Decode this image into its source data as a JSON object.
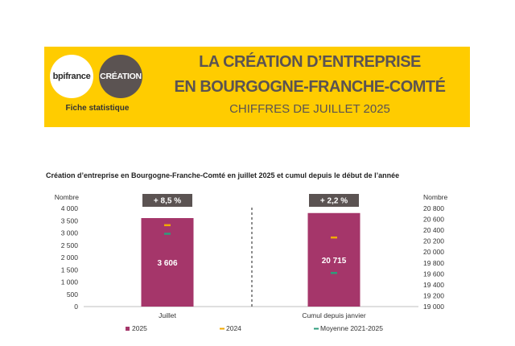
{
  "header": {
    "logo_bpifrance": "bpifrance",
    "logo_creation": "CRÉATION",
    "fiche": "Fiche statistique",
    "title_line1": "LA CRÉATION D’ENTREPRISE",
    "title_line2": "EN BOURGOGNE-FRANCHE-COMTÉ",
    "subtitle": "CHIFFRES DE JUILLET 2025"
  },
  "colors": {
    "banner": "#FFCC00",
    "bar_2025": "#A5366A",
    "marker_2024": "#F2A900",
    "marker_avg": "#2E9C7C",
    "badge": "#5B5352"
  },
  "chart_data": {
    "type": "bar",
    "title": "Création d’entreprise en Bourgogne-Franche-Comté en juillet 2025 et cumul depuis le début de l’année",
    "left_axis": {
      "label": "Nombre",
      "ylim": [
        0,
        4000
      ],
      "ticks": [
        "4 000",
        "3 500",
        "3 000",
        "2 500",
        "2 000",
        "1 500",
        "1 000",
        "500",
        "0"
      ]
    },
    "right_axis": {
      "label": "Nombre",
      "ylim": [
        19000,
        20800
      ],
      "ticks": [
        "20 800",
        "20 600",
        "20 400",
        "20 200",
        "20 000",
        "19 800",
        "19 600",
        "19 400",
        "19 200",
        "19 000"
      ]
    },
    "categories": [
      "Juillet",
      "Cumul depuis janvier"
    ],
    "badges": [
      "+ 8,5 %",
      "+ 2,2 %"
    ],
    "bar_labels": [
      "3 606",
      "20 715"
    ],
    "series": [
      {
        "name": "2025",
        "kind": "bar",
        "values": [
          3606,
          20715
        ]
      },
      {
        "name": "2024",
        "kind": "marker",
        "values": [
          3325,
          20270
        ]
      },
      {
        "name": "Moyenne 2021-2025",
        "kind": "marker",
        "values": [
          2975,
          19620
        ]
      }
    ],
    "legend_position": "bottom"
  }
}
